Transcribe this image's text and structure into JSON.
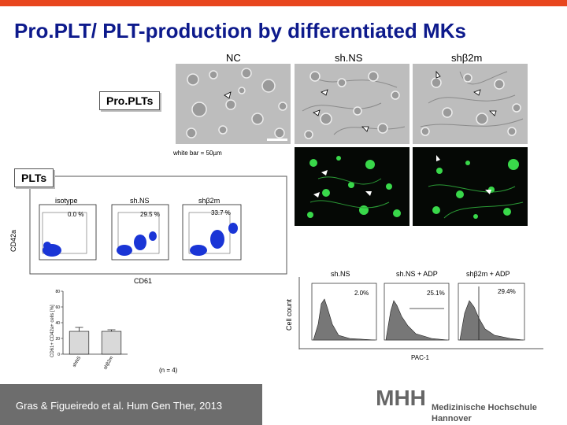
{
  "slide": {
    "title": "Pro.PLT/ PLT-production by differentiated MKs"
  },
  "top_panels": {
    "col_labels": [
      "NC",
      "sh.NS",
      "shβ2m"
    ],
    "tag_proplts": "Pro.PLTs",
    "scale_note": "white bar = 50µm"
  },
  "flow_panel": {
    "tag": "PLTs",
    "col_labels": [
      "isotype",
      "sh.NS",
      "shβ2m"
    ],
    "percents": [
      "0.0 %",
      "29.5 %",
      "33.7 %"
    ],
    "y_axis": "CD42a",
    "x_axis": "CD61"
  },
  "histogram_panel": {
    "col_labels": [
      "sh.NS",
      "sh.NS + ADP",
      "shβ2m + ADP"
    ],
    "percents": [
      "2.0%",
      "25.1%",
      "29.4%"
    ],
    "y_axis": "Cell count",
    "x_axis": "PAC-1"
  },
  "chart_data": {
    "type": "bar",
    "categories": [
      "shNS",
      "shβ2m"
    ],
    "values": [
      29,
      29
    ],
    "errors": [
      5,
      2
    ],
    "ylim": [
      0,
      80
    ],
    "yticks": [
      "0",
      "20",
      "40",
      "60",
      "80"
    ],
    "ylabel": "CD61+ CD42a+ cells [%]",
    "xlabel": "",
    "n_note": "(n = 4)",
    "colors": {
      "bar_fill": "#d9d9d9",
      "bar_stroke": "#222222"
    }
  },
  "footer": {
    "citation": "Gras & Figueiredo et al. Hum Gen Ther, 2013",
    "logo_text": "MHH",
    "institution_line1": "Medizinische Hochschule",
    "institution_line2": "Hannover"
  },
  "colors": {
    "title": "#0d1a8c",
    "top_bar": "#e8461e",
    "footer_citation_bg": "#6d6d6d",
    "scatter_dots": "#1a35d6",
    "fluorescence": "#39d84a"
  }
}
